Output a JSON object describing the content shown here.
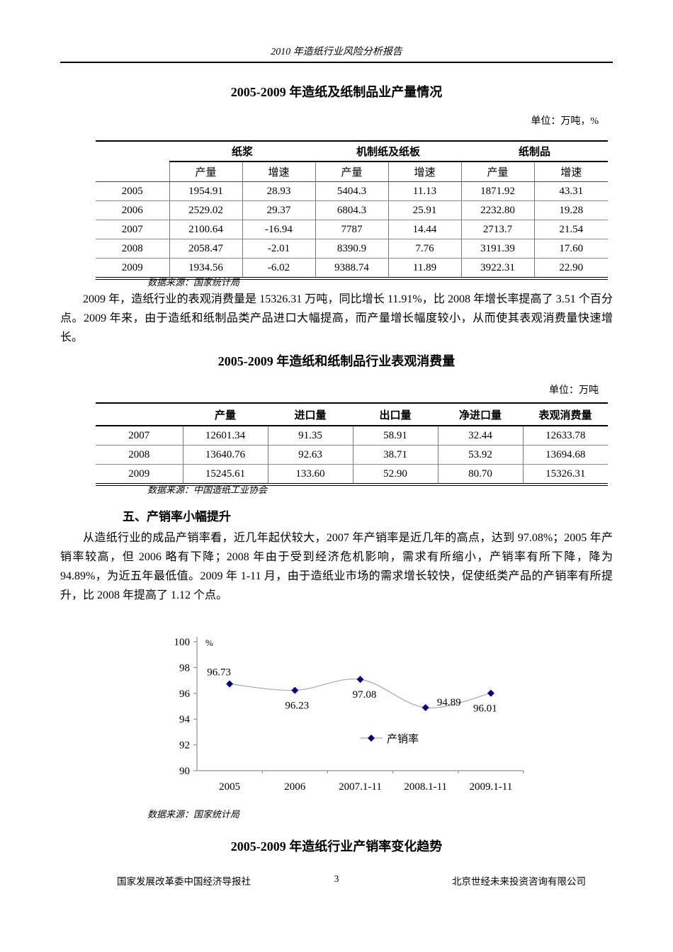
{
  "page": {
    "header_title": "2010 年造纸行业风险分析报告",
    "footer": {
      "left": "国家发展改革委中国经济导报社",
      "page_number": "3",
      "right": "北京世经未来投资咨询有限公司"
    }
  },
  "section1": {
    "title": "2005-2009 年造纸及纸制品业产量情况",
    "unit_label": "单位：万吨，%",
    "table": {
      "col_groups": [
        "纸浆",
        "机制纸及纸板",
        "纸制品"
      ],
      "sub_headers": [
        "产量",
        "增速"
      ],
      "rows": [
        {
          "year": "2005",
          "values": [
            "1954.91",
            "28.93",
            "5404.3",
            "11.13",
            "1871.92",
            "43.31"
          ]
        },
        {
          "year": "2006",
          "values": [
            "2529.02",
            "29.37",
            "6804.3",
            "25.91",
            "2232.80",
            "19.28"
          ]
        },
        {
          "year": "2007",
          "values": [
            "2100.64",
            "-16.94",
            "7787",
            "14.44",
            "2713.7",
            "21.54"
          ]
        },
        {
          "year": "2008",
          "values": [
            "2058.47",
            "-2.01",
            "8390.9",
            "7.76",
            "3191.39",
            "17.60"
          ]
        },
        {
          "year": "2009",
          "values": [
            "1934.56",
            "-6.02",
            "9388.74",
            "11.89",
            "3922.31",
            "22.90"
          ]
        }
      ]
    },
    "source": "数据来源：国家统计局"
  },
  "paragraph1": "2009 年，造纸行业的表观消费量是 15326.31 万吨，同比增长 11.91%，比 2008 年增长率提高了 3.51 个百分点。2009 年来，由于造纸和纸制品类产品进口大幅提高，而产量增长幅度较小，从而使其表观消费量快速增长。",
  "section2": {
    "title": "2005-2009 年造纸和纸制品行业表观消费量",
    "unit_label": "单位：万吨",
    "table": {
      "headers": [
        "",
        "产量",
        "进口量",
        "出口量",
        "净进口量",
        "表观消费量"
      ],
      "rows": [
        {
          "year": "2007",
          "values": [
            "12601.34",
            "91.35",
            "58.91",
            "32.44",
            "12633.78"
          ]
        },
        {
          "year": "2008",
          "values": [
            "13640.76",
            "92.63",
            "38.71",
            "53.92",
            "13694.68"
          ]
        },
        {
          "year": "2009",
          "values": [
            "15245.61",
            "133.60",
            "52.90",
            "80.70",
            "15326.31"
          ]
        }
      ]
    },
    "source": "数据来源：中国造纸工业协会"
  },
  "section3": {
    "heading": "五、产销率小幅提升",
    "paragraph": "从造纸行业的成品产销率看，近几年起伏较大，2007 年产销率是近几年的高点，达到 97.08%；2005 年产销率较高，但 2006 略有下降；2008 年由于受到经济危机影响，需求有所缩小，产销率有所下降，降为 94.89%，为近五年最低值。2009 年 1-11 月，由于造纸业市场的需求增长较快，促使纸类产品的产销率有所提升，比 2008 年提高了 1.12 个点。",
    "chart_source": "数据来源：国家统计局",
    "chart_title": "2005-2009 年造纸行业产销率变化趋势"
  },
  "chart_data": {
    "type": "line",
    "title": "2005-2009年造纸行业产销率变化趋势",
    "categories": [
      "2005",
      "2006",
      "2007.1-11",
      "2008.1-11",
      "2009.1-11"
    ],
    "series": [
      {
        "name": "产销率",
        "values": [
          96.73,
          96.23,
          97.08,
          94.89,
          96.01
        ]
      }
    ],
    "data_labels": [
      "96.73",
      "96.23",
      "97.08",
      "94.89",
      "96.01"
    ],
    "ylabel": "%",
    "ylim": [
      90,
      100
    ],
    "ytick_step": 2,
    "grid": false,
    "legend": "产销率",
    "legend_position": "inside-center",
    "colors": {
      "line": "#a3a3c2",
      "marker": "#000080",
      "axis": "#909090",
      "label": "#000000"
    }
  }
}
